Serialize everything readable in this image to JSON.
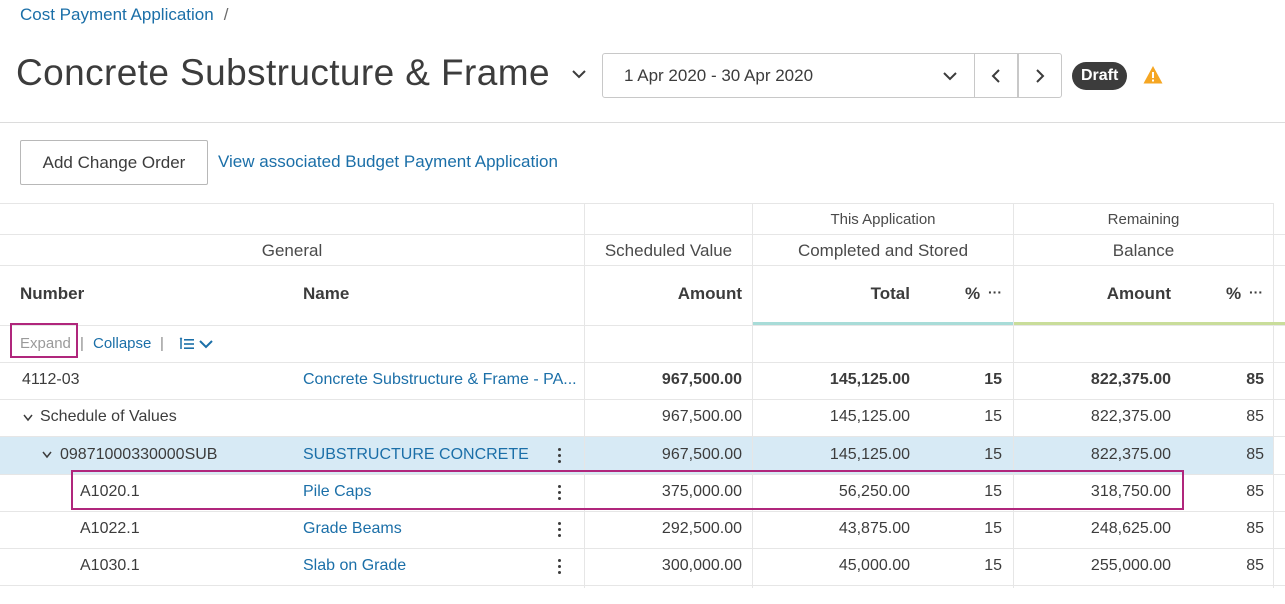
{
  "breadcrumb": {
    "link": "Cost Payment Application",
    "separator": "/"
  },
  "page": {
    "title": "Concrete Substructure & Frame"
  },
  "period": {
    "label": "1 Apr 2020 - 30 Apr 2020"
  },
  "status": {
    "badge": "Draft"
  },
  "toolbar": {
    "add_change_order": "Add Change Order",
    "view_budget": "View associated Budget Payment Application"
  },
  "table": {
    "group_headers": {
      "this_application": "This Application",
      "remaining": "Remaining"
    },
    "section_headers": {
      "general": "General",
      "scheduled_value": "Scheduled Value",
      "completed_stored": "Completed and Stored",
      "balance": "Balance"
    },
    "columns": {
      "number": "Number",
      "name": "Name",
      "amount": "Amount",
      "total": "Total",
      "pct": "%",
      "more": "···",
      "rem_amount": "Amount",
      "rem_pct": "%"
    },
    "controls": {
      "expand": "Expand",
      "collapse": "Collapse",
      "sep": "|"
    },
    "rows": [
      {
        "number": "4112-03",
        "name": "Concrete Substructure & Frame - PA...",
        "scheduled": "967,500.00",
        "total": "145,125.00",
        "pct": "15",
        "balance": "822,375.00",
        "bal_pct": "85"
      },
      {
        "number": "Schedule of Values",
        "name": "",
        "scheduled": "967,500.00",
        "total": "145,125.00",
        "pct": "15",
        "balance": "822,375.00",
        "bal_pct": "85"
      },
      {
        "number": "09871000330000SUB",
        "name": "SUBSTRUCTURE CONCRETE",
        "scheduled": "967,500.00",
        "total": "145,125.00",
        "pct": "15",
        "balance": "822,375.00",
        "bal_pct": "85"
      },
      {
        "number": "A1020.1",
        "name": "Pile Caps",
        "scheduled": "375,000.00",
        "total": "56,250.00",
        "pct": "15",
        "balance": "318,750.00",
        "bal_pct": "85"
      },
      {
        "number": "A1022.1",
        "name": "Grade Beams",
        "scheduled": "292,500.00",
        "total": "43,875.00",
        "pct": "15",
        "balance": "248,625.00",
        "bal_pct": "85"
      },
      {
        "number": "A1030.1",
        "name": "Slab on Grade",
        "scheduled": "300,000.00",
        "total": "45,000.00",
        "pct": "15",
        "balance": "255,000.00",
        "bal_pct": "85"
      }
    ]
  },
  "colors": {
    "link": "#1b6fa8",
    "highlight": "#b0267c",
    "selected_row": "#d7eaf5",
    "warning": "#f5a623",
    "accent_completed": "#a8dcd8",
    "accent_remaining": "#c9dd9a"
  }
}
